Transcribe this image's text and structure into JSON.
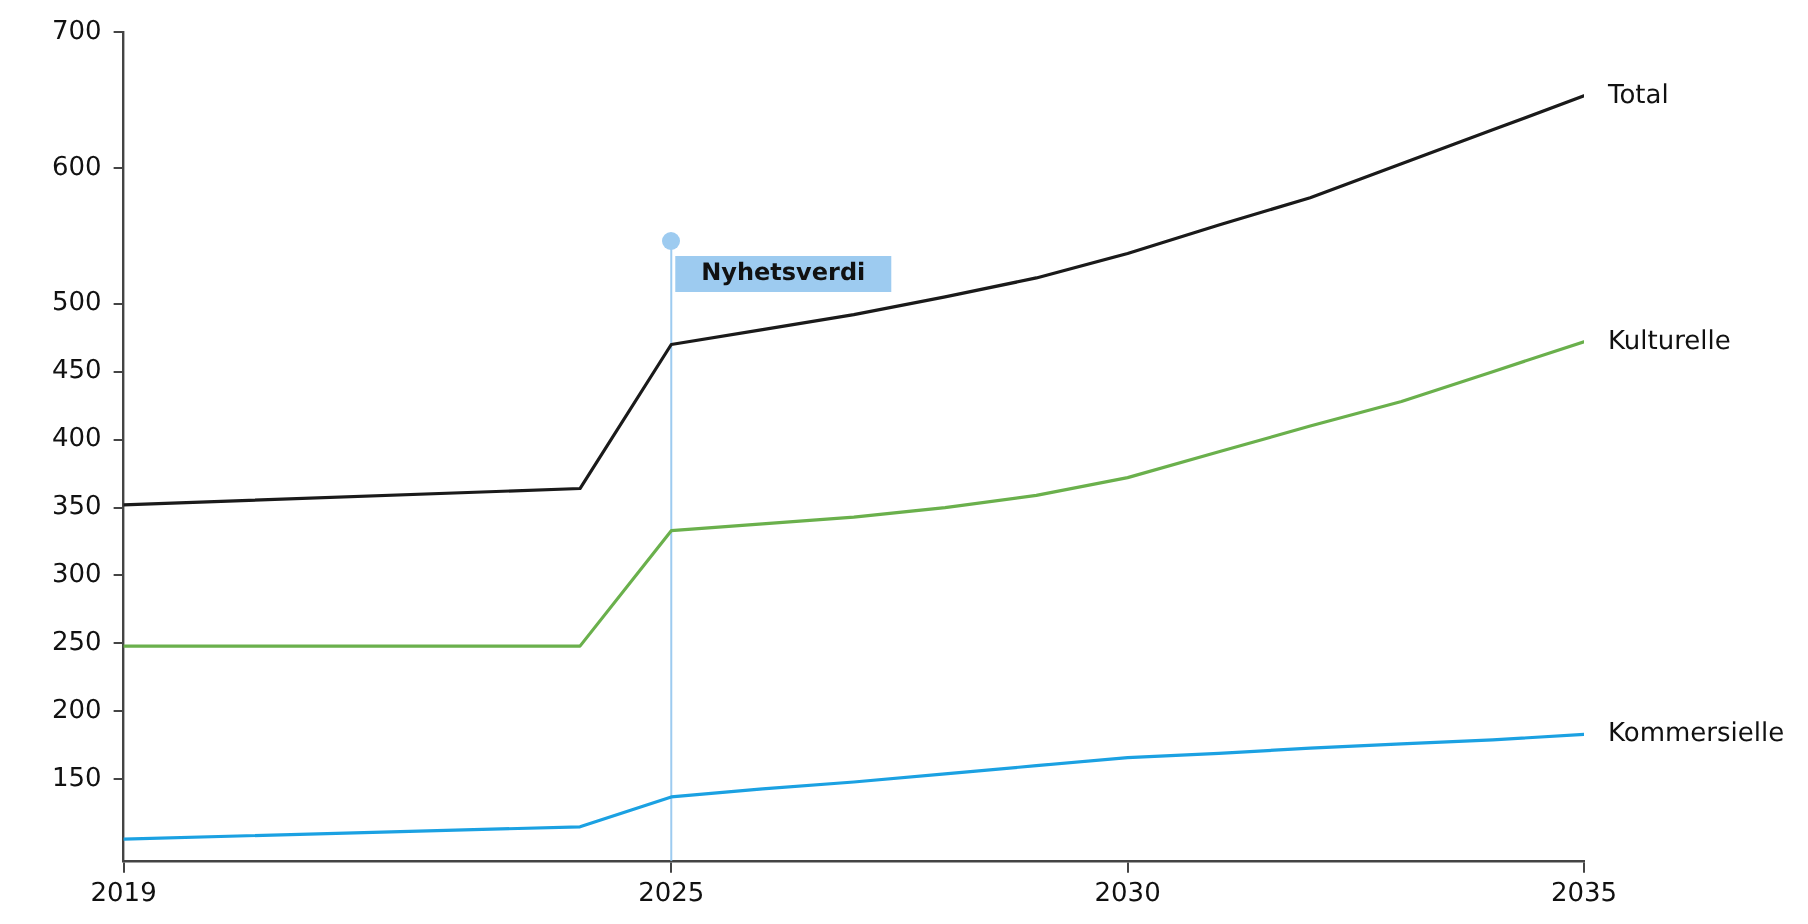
{
  "chart_data": {
    "type": "line",
    "x": [
      2019,
      2024,
      2025,
      2026,
      2027,
      2028,
      2029,
      2030,
      2031,
      2032,
      2033,
      2034,
      2035
    ],
    "series": [
      {
        "name": "Total",
        "color": "#1a1a1a",
        "values": [
          352,
          364,
          470,
          481,
          492,
          505,
          519,
          537,
          558,
          578,
          603,
          628,
          653
        ]
      },
      {
        "name": "Kulturelle",
        "color": "#6ab04c",
        "values": [
          248,
          248,
          333,
          338,
          343,
          350,
          359,
          372,
          391,
          410,
          428,
          450,
          472
        ]
      },
      {
        "name": "Kommersielle",
        "color": "#1ba1e2",
        "values": [
          106,
          115,
          137,
          143,
          148,
          154,
          160,
          166,
          169,
          173,
          176,
          179,
          183
        ]
      }
    ],
    "xlim": [
      2019,
      2035
    ],
    "xticks": [
      2019,
      2025,
      2030,
      2035
    ],
    "ylim": [
      90,
      700
    ],
    "yticks": [
      150,
      200,
      250,
      300,
      350,
      400,
      450,
      500,
      600,
      700
    ],
    "ref_lines": [
      {
        "axis": "x",
        "value": 2025,
        "label": "Nyhetsverdi",
        "color": "#9dcbf0"
      }
    ],
    "grid": false,
    "legend": false,
    "marker": "none",
    "line_style": "solid"
  }
}
